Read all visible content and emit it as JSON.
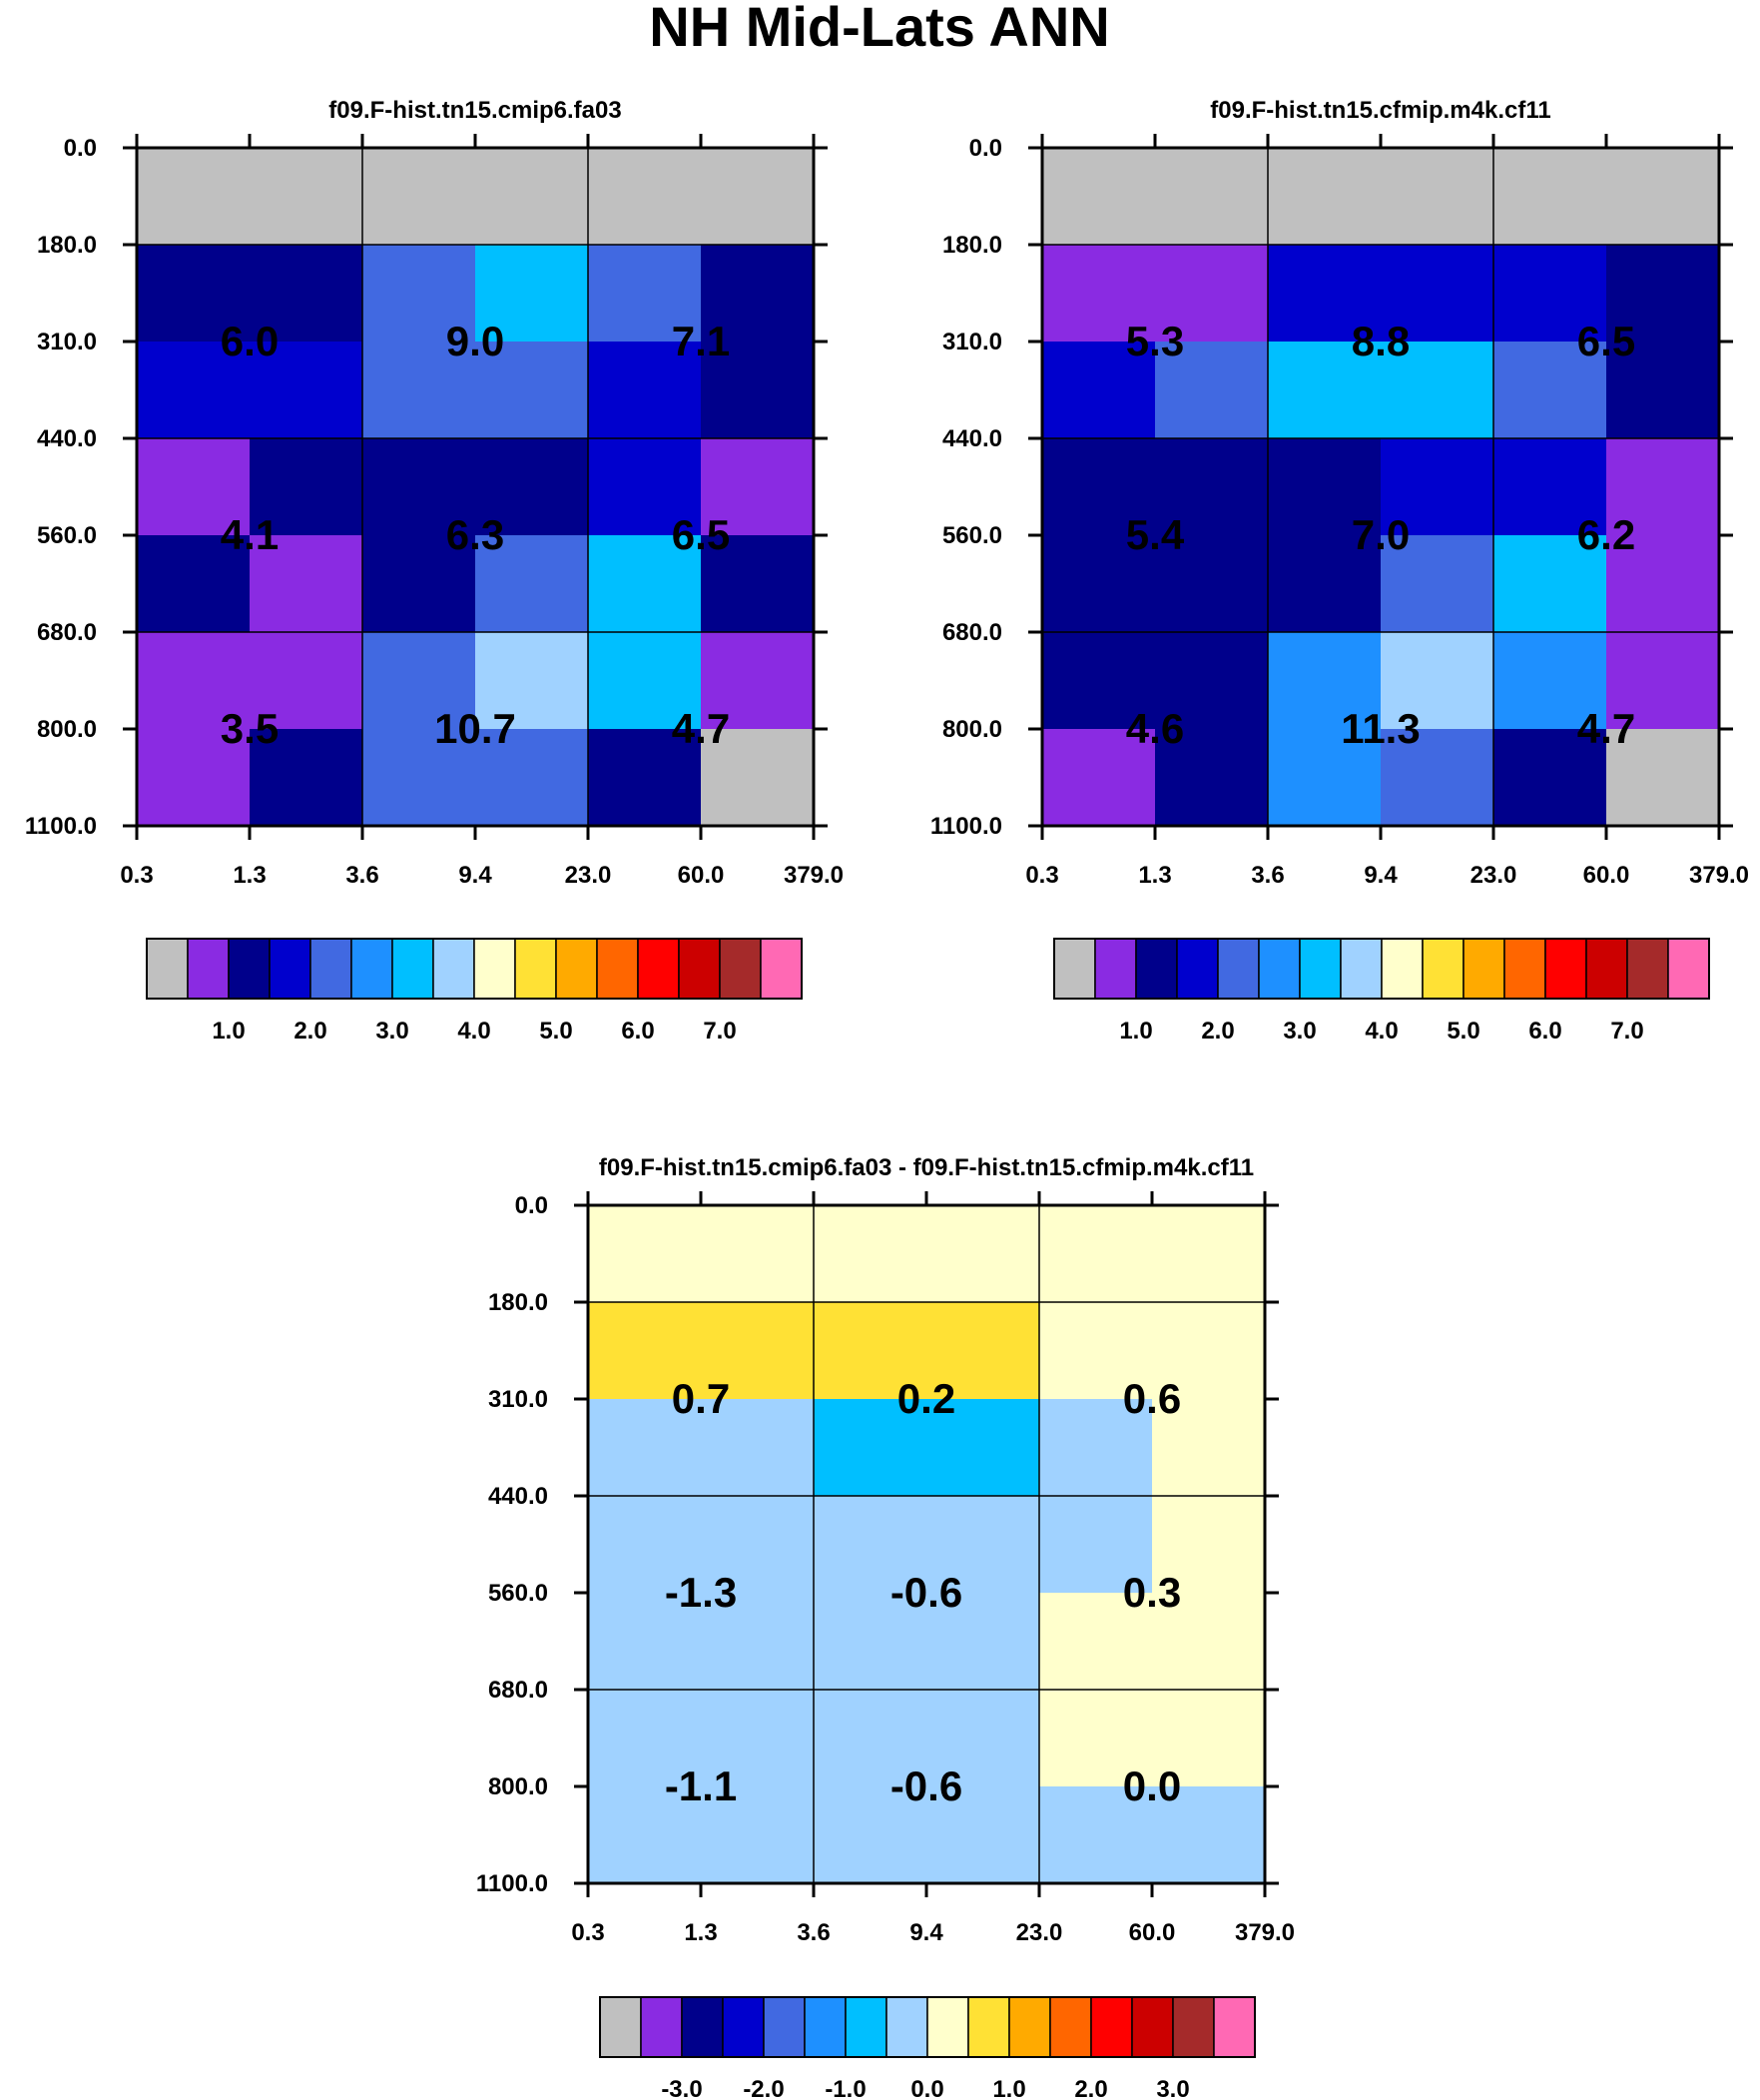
{
  "title": "NH Mid-Lats ANN",
  "x_ticks": [
    "0.3",
    "1.3",
    "3.6",
    "9.4",
    "23.0",
    "60.0",
    "379.0"
  ],
  "y_ticks": [
    "0.0",
    "180.0",
    "310.0",
    "440.0",
    "560.0",
    "680.0",
    "800.0",
    "1100.0"
  ],
  "palette": [
    "#c0c0c0",
    "#8a2be2",
    "#00008b",
    "#0000cd",
    "#4169e1",
    "#1e90ff",
    "#00bfff",
    "#a0d2ff",
    "#ffffcc",
    "#ffe135",
    "#ffaa00",
    "#ff6600",
    "#ff0000",
    "#cc0000",
    "#a52a2a",
    "#ff69b4"
  ],
  "chart_data": [
    {
      "type": "heatmap",
      "title": "f09.F-hist.tn15.cmip6.fa03",
      "x_edges": [
        "0.3",
        "1.3",
        "3.6",
        "9.4",
        "23.0",
        "60.0",
        "379.0"
      ],
      "y_edges": [
        "0.0",
        "180.0",
        "310.0",
        "440.0",
        "560.0",
        "680.0",
        "800.0",
        "1100.0"
      ],
      "cell_color_index": [
        [
          0,
          0,
          0,
          0,
          0,
          0
        ],
        [
          2,
          2,
          4,
          6,
          4,
          2
        ],
        [
          3,
          3,
          4,
          4,
          3,
          2
        ],
        [
          1,
          2,
          2,
          2,
          3,
          1
        ],
        [
          2,
          1,
          2,
          4,
          6,
          2
        ],
        [
          1,
          1,
          4,
          7,
          6,
          1
        ],
        [
          1,
          2,
          4,
          4,
          2,
          0
        ]
      ],
      "cell_labels": [
        [
          "6.0",
          "9.0",
          "7.1"
        ],
        [
          "4.1",
          "6.3",
          "6.5"
        ],
        [
          "3.5",
          "10.7",
          "4.7"
        ]
      ],
      "colorbar": {
        "labels": [
          "1.0",
          "2.0",
          "3.0",
          "4.0",
          "5.0",
          "6.0",
          "7.0"
        ]
      }
    },
    {
      "type": "heatmap",
      "title": "f09.F-hist.tn15.cfmip.m4k.cf11",
      "x_edges": [
        "0.3",
        "1.3",
        "3.6",
        "9.4",
        "23.0",
        "60.0",
        "379.0"
      ],
      "y_edges": [
        "0.0",
        "180.0",
        "310.0",
        "440.0",
        "560.0",
        "680.0",
        "800.0",
        "1100.0"
      ],
      "cell_color_index": [
        [
          0,
          0,
          0,
          0,
          0,
          0
        ],
        [
          1,
          1,
          3,
          3,
          3,
          2
        ],
        [
          3,
          4,
          6,
          6,
          4,
          2
        ],
        [
          2,
          2,
          2,
          3,
          3,
          1
        ],
        [
          2,
          2,
          2,
          4,
          6,
          1
        ],
        [
          2,
          2,
          5,
          7,
          5,
          1
        ],
        [
          1,
          2,
          5,
          4,
          2,
          0
        ]
      ],
      "cell_labels": [
        [
          "5.3",
          "8.8",
          "6.5"
        ],
        [
          "5.4",
          "7.0",
          "6.2"
        ],
        [
          "4.6",
          "11.3",
          "4.7"
        ]
      ],
      "colorbar": {
        "labels": [
          "1.0",
          "2.0",
          "3.0",
          "4.0",
          "5.0",
          "6.0",
          "7.0"
        ]
      }
    },
    {
      "type": "heatmap",
      "title": "f09.F-hist.tn15.cmip6.fa03 - f09.F-hist.tn15.cfmip.m4k.cf11",
      "x_edges": [
        "0.3",
        "1.3",
        "3.6",
        "9.4",
        "23.0",
        "60.0",
        "379.0"
      ],
      "y_edges": [
        "0.0",
        "180.0",
        "310.0",
        "440.0",
        "560.0",
        "680.0",
        "800.0",
        "1100.0"
      ],
      "cell_color_index": [
        [
          8,
          8,
          8,
          8,
          8,
          8
        ],
        [
          9,
          9,
          9,
          9,
          8,
          8
        ],
        [
          7,
          7,
          6,
          6,
          7,
          8
        ],
        [
          7,
          7,
          7,
          7,
          7,
          8
        ],
        [
          7,
          7,
          7,
          7,
          8,
          8
        ],
        [
          7,
          7,
          7,
          7,
          8,
          8
        ],
        [
          7,
          7,
          7,
          7,
          7,
          7
        ]
      ],
      "cell_labels": [
        [
          "0.7",
          "0.2",
          "0.6"
        ],
        [
          "-1.3",
          "-0.6",
          "0.3"
        ],
        [
          "-1.1",
          "-0.6",
          "0.0"
        ]
      ],
      "colorbar": {
        "labels": [
          "-3.0",
          "-2.0",
          "-1.0",
          "0.0",
          "1.0",
          "2.0",
          "3.0"
        ]
      }
    }
  ]
}
